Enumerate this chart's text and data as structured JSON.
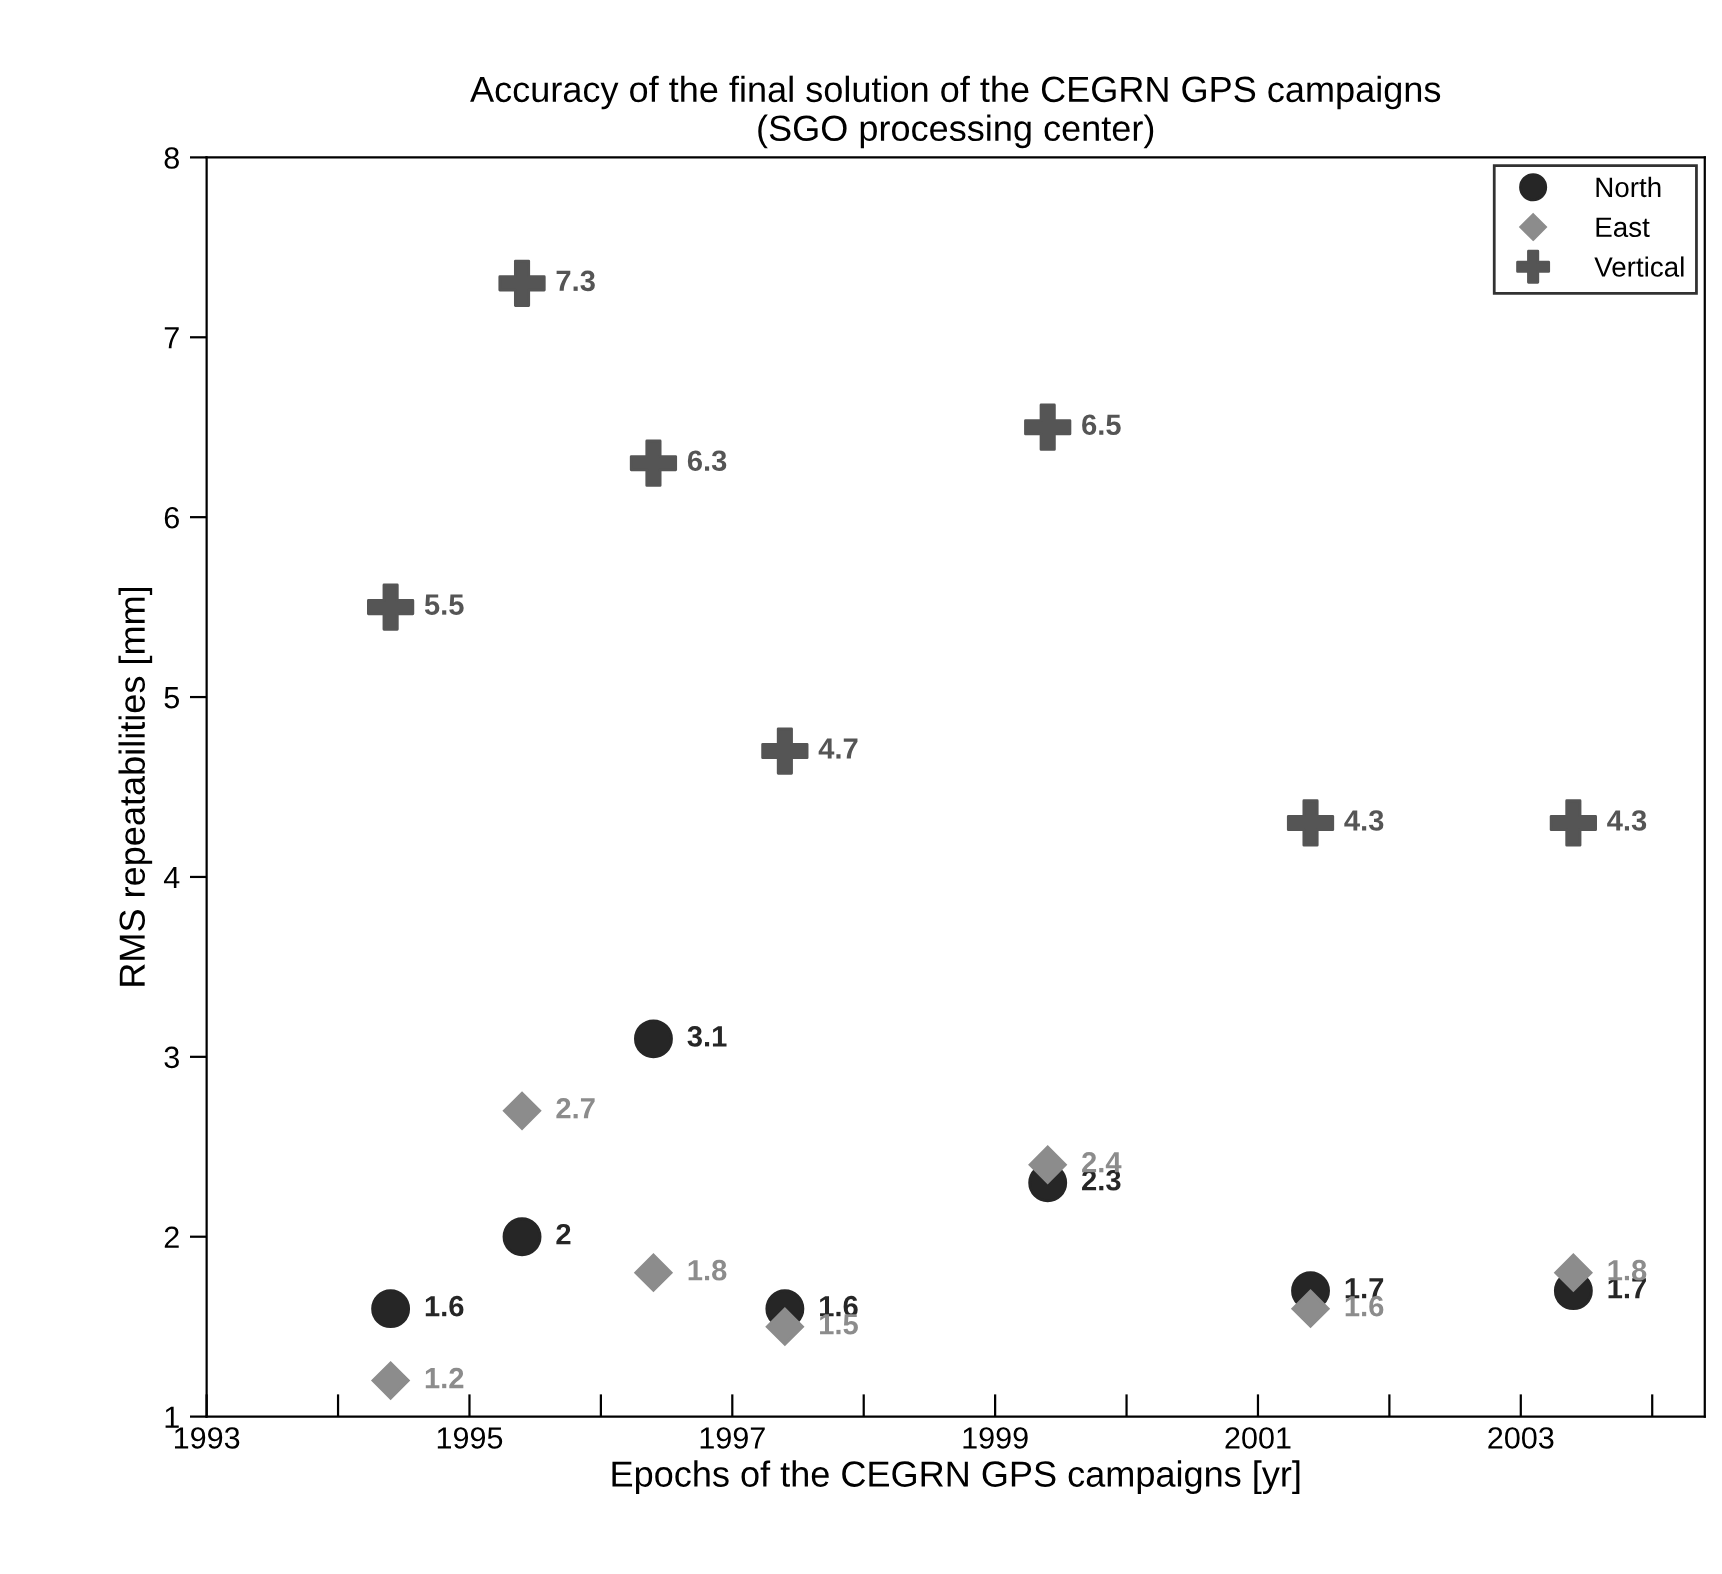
{
  "chart_data": {
    "type": "scatter",
    "title": "Accuracy of the final solution of the CEGRN GPS campaigns\n(SGO processing center)",
    "xlabel": "Epochs of the CEGRN GPS campaigns [yr]",
    "ylabel": "RMS repeatabilities [mm]",
    "x": [
      1994.4,
      1995.4,
      1996.4,
      1997.4,
      1999.4,
      2001.4,
      2003.4
    ],
    "series": [
      {
        "name": "North",
        "color": "#262626",
        "marker": "circle",
        "values": [
          1.6,
          2,
          3.1,
          1.6,
          2.3,
          1.7,
          1.7
        ],
        "value_labels": [
          "1.6",
          "2",
          "3.1",
          "1.6",
          "2.3",
          "1.7",
          "1.7"
        ]
      },
      {
        "name": "East",
        "color": "#8c8c8c",
        "marker": "diamond",
        "values": [
          1.2,
          2.7,
          1.8,
          1.5,
          2.4,
          1.6,
          1.8
        ],
        "value_labels": [
          "1.2",
          "2.7",
          "1.8",
          "1.5",
          "2.4",
          "1.6",
          "1.8"
        ]
      },
      {
        "name": "Vertical",
        "color": "#555555",
        "marker": "cross",
        "values": [
          5.5,
          7.3,
          6.3,
          4.7,
          6.5,
          4.3,
          4.3
        ],
        "value_labels": [
          "5.5",
          "7.3",
          "6.3",
          "4.7",
          "6.5",
          "4.3",
          "4.3"
        ]
      }
    ],
    "xlim": [
      1993,
      2004.4
    ],
    "ylim": [
      1,
      8
    ],
    "xticks": [
      1993,
      {
        "value": 1994,
        "label": null
      },
      1995,
      {
        "value": 1996,
        "label": null
      },
      1997,
      {
        "value": 1998,
        "label": null
      },
      1999,
      {
        "value": 2000,
        "label": null
      },
      2001,
      {
        "value": 2002,
        "label": null
      },
      2003,
      {
        "value": 2004,
        "label": null
      }
    ],
    "yticks": [
      1,
      2,
      3,
      4,
      5,
      6,
      7,
      8
    ],
    "legend": "top right",
    "grid": false
  }
}
